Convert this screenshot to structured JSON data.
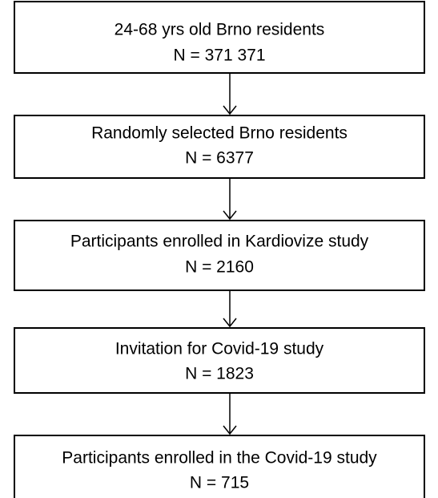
{
  "nodes": [
    {
      "label": "24-68 yrs old Brno residents",
      "count": "N = 371 371"
    },
    {
      "label": "Randomly selected Brno residents",
      "count": "N = 6377"
    },
    {
      "label": "Participants enrolled in Kardiovize study",
      "count": "N = 2160"
    },
    {
      "label": "Invitation for Covid-19 study",
      "count": "N = 1823"
    },
    {
      "label": "Participants enrolled in the Covid-19 study",
      "count": "N = 715"
    }
  ]
}
